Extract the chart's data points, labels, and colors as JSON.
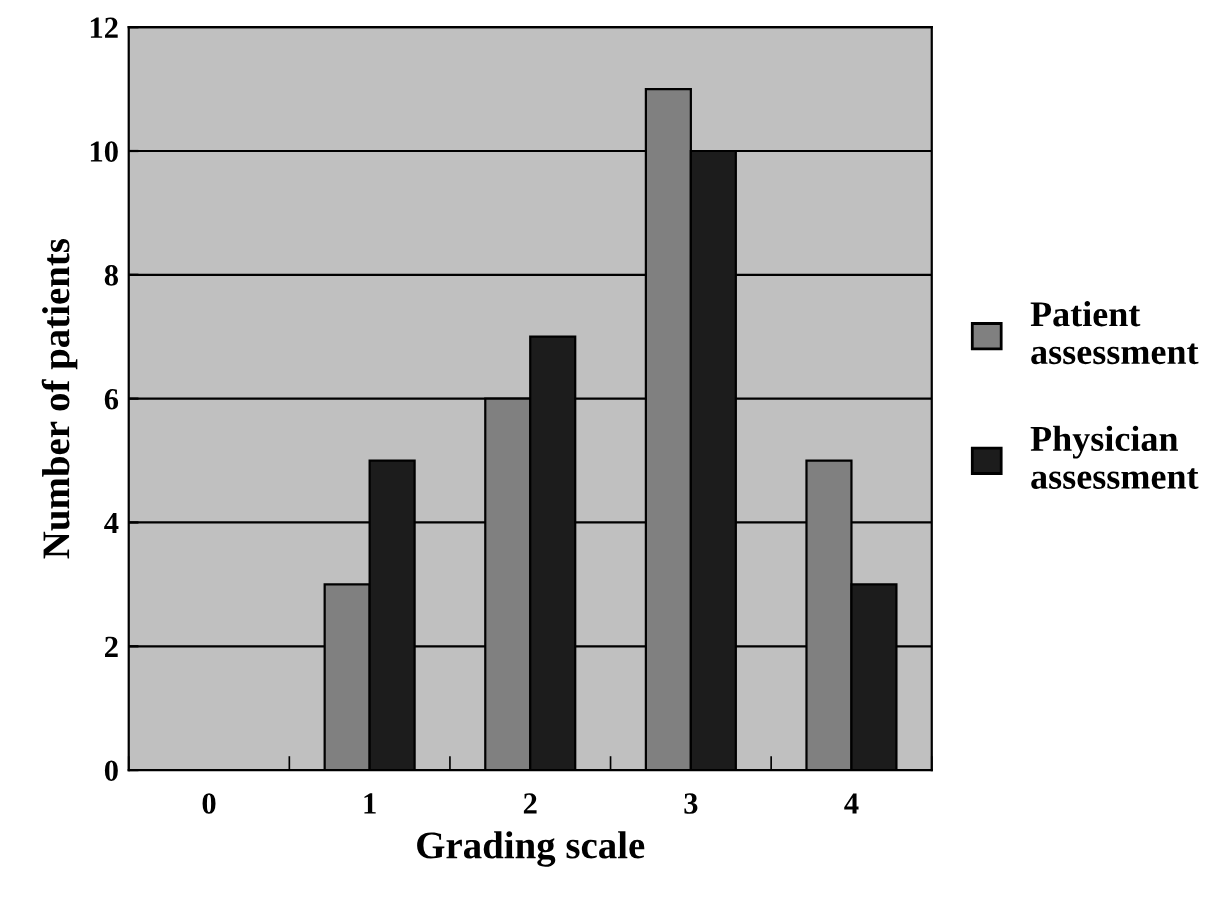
{
  "chart_data": {
    "type": "bar",
    "xlabel": "Grading scale",
    "ylabel": "Number of patients",
    "categories": [
      "0",
      "1",
      "2",
      "3",
      "4"
    ],
    "series": [
      {
        "name": "Patient assessment",
        "color": "#808080",
        "values": [
          0,
          3,
          6,
          11,
          5
        ]
      },
      {
        "name": "Physician assessment",
        "color": "#1c1c1c",
        "values": [
          0,
          5,
          7,
          10,
          3
        ]
      }
    ],
    "ylim": [
      0,
      12
    ],
    "yticks": [
      0,
      2,
      4,
      6,
      8,
      10,
      12
    ],
    "grid": "y",
    "legend": "right"
  }
}
